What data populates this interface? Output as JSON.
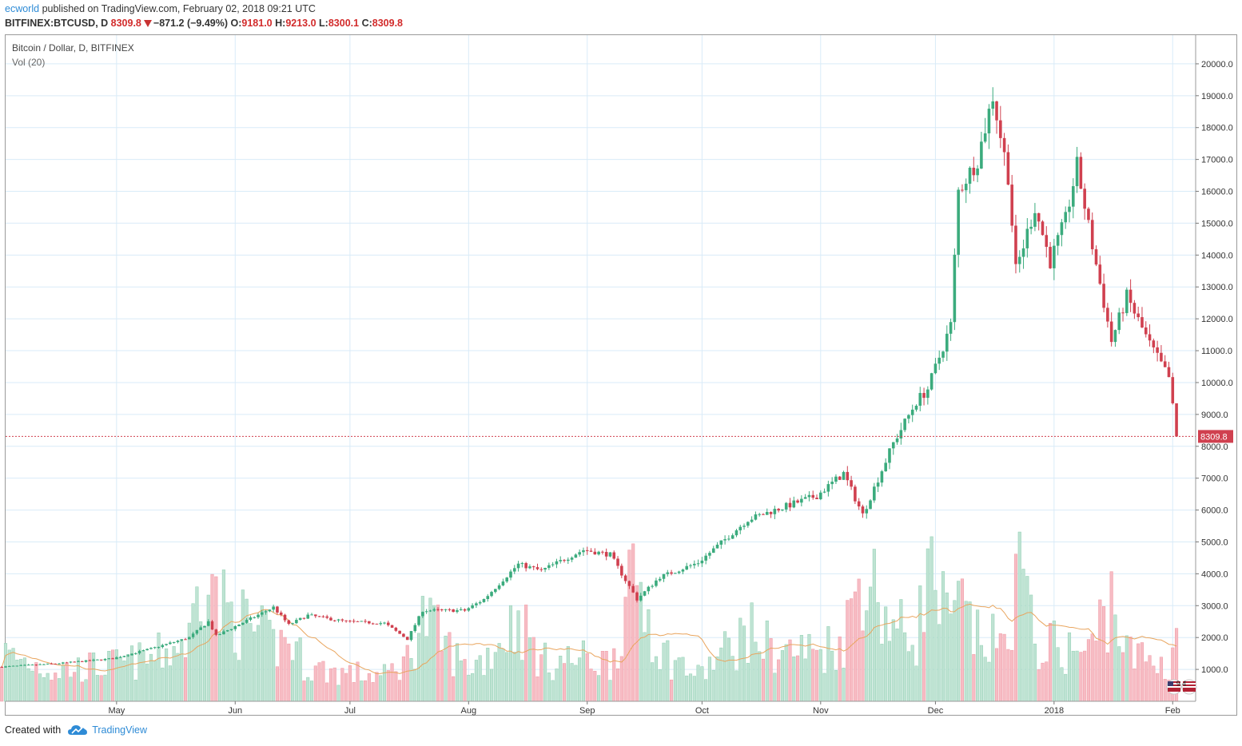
{
  "header": {
    "author": "ecworld",
    "published_text": "published on TradingView.com, February 02, 2018 09:21 UTC",
    "symbol": "BITFINEX:BTCUSD, D",
    "last": "8309.8",
    "change": "−871.2 (−9.49%)",
    "o_label": "O:",
    "o_value": "9181.0",
    "h_label": "H:",
    "h_value": "9213.0",
    "l_label": "L:",
    "l_value": "8300.1",
    "c_label": "C:",
    "c_value": "8309.8"
  },
  "legend": {
    "symbol_title": "Bitcoin / Dollar, D, BITFINEX",
    "volume_title": "Vol (20)"
  },
  "footer": {
    "created_with": "Created with",
    "brand": "TradingView"
  },
  "badge": {
    "text": "9 4"
  },
  "colors": {
    "up": "#3bab7d",
    "down": "#d0404f",
    "vol_up": "#bfe3d3",
    "vol_down": "#f7bcc4",
    "ma": "#e9a55e",
    "grid": "#d9ebf8",
    "last_price_line": "#d0404f"
  },
  "chart_data": {
    "type": "candlestick",
    "title": "Bitcoin / Dollar, D, BITFINEX",
    "y_axis": {
      "ticks": [
        1000,
        2000,
        3000,
        4000,
        5000,
        6000,
        7000,
        8000,
        9000,
        10000,
        11000,
        12000,
        13000,
        14000,
        15000,
        16000,
        17000,
        18000,
        19000,
        20000
      ],
      "tick_labels": [
        "1000.0",
        "2000.0",
        "3000.0",
        "4000.0",
        "5000.0",
        "6000.0",
        "7000.0",
        "8000.0",
        "9000.0",
        "10000.0",
        "11000.0",
        "12000.0",
        "13000.0",
        "14000.0",
        "15000.0",
        "16000.0",
        "17000.0",
        "18000.0",
        "19000.0",
        "20000.0"
      ],
      "range": [
        0,
        20900
      ]
    },
    "x_axis": {
      "labels": [
        "May",
        "Jun",
        "Jul",
        "Aug",
        "Sep",
        "Oct",
        "Nov",
        "Dec",
        "2018",
        "Feb"
      ],
      "label_dates": [
        "2017-05-01",
        "2017-06-01",
        "2017-07-01",
        "2017-08-01",
        "2017-09-01",
        "2017-10-01",
        "2017-11-01",
        "2017-12-01",
        "2018-01-01",
        "2018-02-01"
      ],
      "range": [
        "2017-04-02",
        "2018-02-07"
      ]
    },
    "last_price": 8309.8,
    "last_price_label": "8309.8",
    "volume_indicator": "Vol (20)",
    "price_anchors": [
      [
        "2017-04-01",
        1080,
        1700
      ],
      [
        "2017-04-15",
        1180,
        1100
      ],
      [
        "2017-04-30",
        1340,
        1300
      ],
      [
        "2017-05-10",
        1650,
        1500
      ],
      [
        "2017-05-20",
        2000,
        2200
      ],
      [
        "2017-05-25",
        2500,
        6000
      ],
      [
        "2017-05-27",
        2050,
        3500
      ],
      [
        "2017-06-06",
        2650,
        2500
      ],
      [
        "2017-06-11",
        2950,
        2000
      ],
      [
        "2017-06-15",
        2400,
        2200
      ],
      [
        "2017-06-20",
        2700,
        1200
      ],
      [
        "2017-06-30",
        2500,
        1000
      ],
      [
        "2017-07-10",
        2450,
        900
      ],
      [
        "2017-07-16",
        1950,
        1500
      ],
      [
        "2017-07-20",
        2850,
        3000
      ],
      [
        "2017-07-31",
        2850,
        1200
      ],
      [
        "2017-08-05",
        3200,
        1500
      ],
      [
        "2017-08-14",
        4300,
        3000
      ],
      [
        "2017-08-20",
        4100,
        1400
      ],
      [
        "2017-08-31",
        4750,
        1500
      ],
      [
        "2017-09-07",
        4600,
        1400
      ],
      [
        "2017-09-14",
        3200,
        4500
      ],
      [
        "2017-09-20",
        3900,
        1800
      ],
      [
        "2017-09-30",
        4350,
        900
      ],
      [
        "2017-10-13",
        5700,
        2500
      ],
      [
        "2017-10-20",
        6000,
        1800
      ],
      [
        "2017-10-31",
        6450,
        1800
      ],
      [
        "2017-11-07",
        7150,
        2200
      ],
      [
        "2017-11-12",
        5850,
        4900
      ],
      [
        "2017-11-20",
        8100,
        2600
      ],
      [
        "2017-11-26",
        9400,
        2300
      ],
      [
        "2017-11-29",
        9800,
        4700
      ],
      [
        "2017-12-05",
        11800,
        2500
      ],
      [
        "2017-12-07",
        16000,
        3500
      ],
      [
        "2017-12-12",
        17000,
        2200
      ],
      [
        "2017-12-16",
        19000,
        2100
      ],
      [
        "2017-12-20",
        16500,
        1900
      ],
      [
        "2017-12-22",
        13500,
        5200
      ],
      [
        "2017-12-27",
        15500,
        2000
      ],
      [
        "2017-12-31",
        13800,
        2000
      ],
      [
        "2018-01-04",
        15100,
        1800
      ],
      [
        "2018-01-07",
        16800,
        1800
      ],
      [
        "2018-01-10",
        14900,
        1700
      ],
      [
        "2018-01-16",
        11300,
        3800
      ],
      [
        "2018-01-20",
        12700,
        1700
      ],
      [
        "2018-01-26",
        11200,
        1500
      ],
      [
        "2018-01-31",
        10150,
        1200
      ],
      [
        "2018-02-02",
        8310,
        2300
      ]
    ]
  }
}
